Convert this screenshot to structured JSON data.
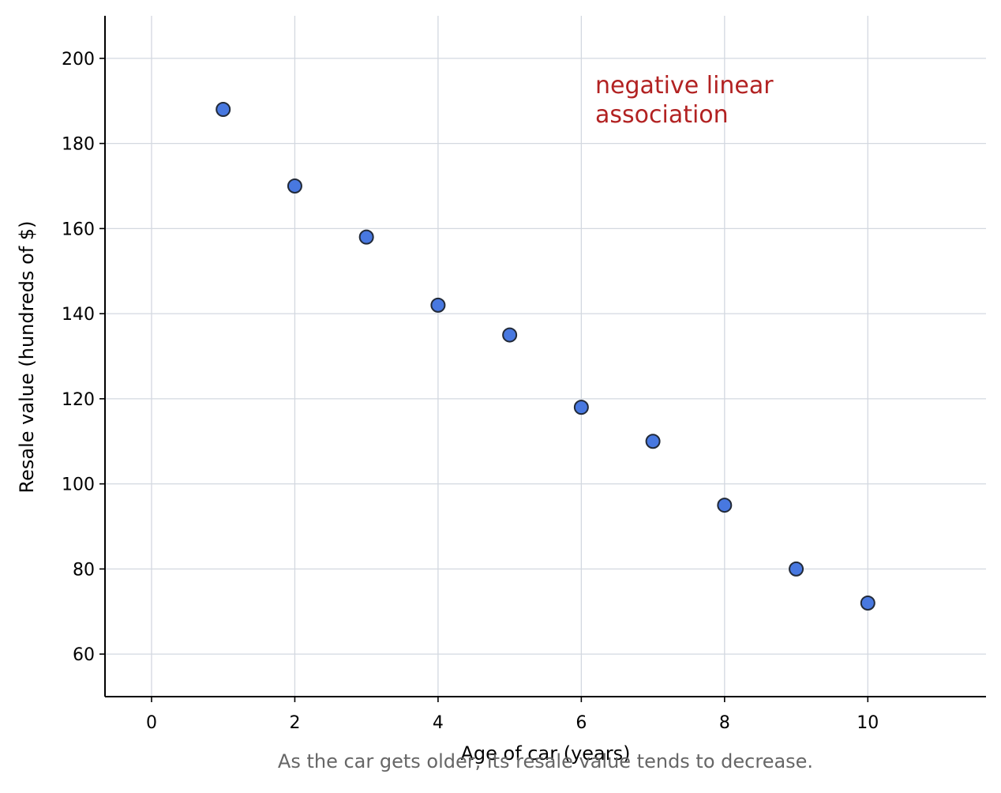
{
  "chart_data": {
    "type": "scatter",
    "title": "",
    "xlabel": "Age of car (years)",
    "ylabel": "Resale value (hundreds of $)",
    "xlim": [
      -0.65,
      11.65
    ],
    "ylim": [
      50,
      210
    ],
    "xticks": [
      0,
      2,
      4,
      6,
      8,
      10
    ],
    "yticks": [
      60,
      80,
      100,
      120,
      140,
      160,
      180,
      200
    ],
    "grid": true,
    "points": [
      {
        "x": 1,
        "y": 188
      },
      {
        "x": 2,
        "y": 170
      },
      {
        "x": 3,
        "y": 158
      },
      {
        "x": 4,
        "y": 142
      },
      {
        "x": 5,
        "y": 135
      },
      {
        "x": 6,
        "y": 118
      },
      {
        "x": 7,
        "y": 110
      },
      {
        "x": 8,
        "y": 95
      },
      {
        "x": 9,
        "y": 80
      },
      {
        "x": 10,
        "y": 72
      }
    ],
    "annotation": {
      "lines": [
        "negative linear",
        "association"
      ],
      "color": "#b22222"
    },
    "caption": "As the car gets older, its resale value tends to decrease.",
    "colors": {
      "marker_fill": "#4878e0",
      "marker_edge": "#222a38",
      "grid": "#d3d8e0",
      "axis": "#000000",
      "caption": "#666666"
    }
  }
}
